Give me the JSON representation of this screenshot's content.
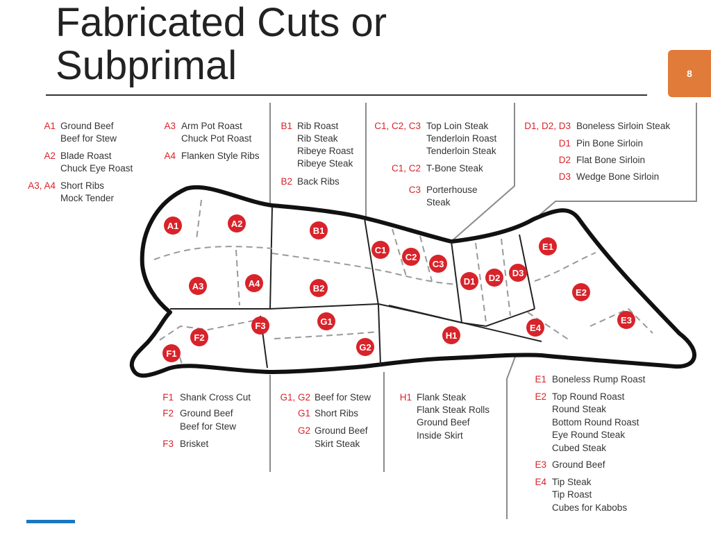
{
  "title": "Fabricated Cuts or Subprimal",
  "title_line1": "Fabricated Cuts or",
  "title_line2": "Subprimal",
  "page_number": "8",
  "colors": {
    "code_red": "#d8232a",
    "badge_orange": "#e07b39",
    "footer_blue": "#1a78c2"
  },
  "cut_markers": [
    "A1",
    "A2",
    "A3",
    "A4",
    "B1",
    "B2",
    "C1",
    "C2",
    "C3",
    "D1",
    "D2",
    "D3",
    "E1",
    "E2",
    "E3",
    "E4",
    "F1",
    "F2",
    "F3",
    "G1",
    "G2",
    "H1"
  ],
  "groups": {
    "a": [
      {
        "code": "A1",
        "lines": [
          "Ground Beef",
          "Beef for Stew"
        ]
      },
      {
        "code": "A2",
        "lines": [
          "Blade Roast",
          "Chuck Eye Roast"
        ]
      },
      {
        "code": "A3, A4",
        "lines": [
          "Short Ribs",
          "Mock Tender"
        ]
      },
      {
        "code": "A3",
        "lines": [
          "Arm Pot Roast",
          "Chuck Pot Roast"
        ]
      },
      {
        "code": "A4",
        "lines": [
          "Flanken Style Ribs"
        ]
      }
    ],
    "b": [
      {
        "code": "B1",
        "lines": [
          "Rib Roast",
          "Rib Steak",
          "Ribeye Roast",
          "Ribeye Steak"
        ]
      },
      {
        "code": "B2",
        "lines": [
          "Back Ribs"
        ]
      }
    ],
    "c": [
      {
        "code": "C1, C2, C3",
        "lines": [
          "Top Loin Steak",
          "Tenderloin Roast",
          "Tenderloin Steak"
        ]
      },
      {
        "code": "C1, C2",
        "lines": [
          "T-Bone Steak"
        ]
      },
      {
        "code": "C3",
        "lines": [
          "Porterhouse",
          "Steak"
        ]
      }
    ],
    "d": [
      {
        "code": "D1, D2, D3",
        "lines": [
          "Boneless Sirloin Steak"
        ]
      },
      {
        "code": "D1",
        "lines": [
          "Pin Bone Sirloin"
        ]
      },
      {
        "code": "D2",
        "lines": [
          "Flat Bone Sirloin"
        ]
      },
      {
        "code": "D3",
        "lines": [
          "Wedge Bone Sirloin"
        ]
      }
    ],
    "f": [
      {
        "code": "F1",
        "lines": [
          "Shank Cross Cut"
        ]
      },
      {
        "code": "F2",
        "lines": [
          "Ground Beef",
          "Beef for Stew"
        ]
      },
      {
        "code": "F3",
        "lines": [
          "Brisket"
        ]
      }
    ],
    "g": [
      {
        "code": "G1, G2",
        "lines": [
          "Beef for Stew"
        ]
      },
      {
        "code": "G1",
        "lines": [
          "Short Ribs"
        ]
      },
      {
        "code": "G2",
        "lines": [
          "Ground Beef",
          "Skirt Steak"
        ]
      }
    ],
    "h": [
      {
        "code": "H1",
        "lines": [
          "Flank Steak",
          "Flank Steak Rolls",
          "Ground Beef",
          "Inside Skirt"
        ]
      }
    ],
    "e": [
      {
        "code": "E1",
        "lines": [
          "Boneless Rump Roast"
        ]
      },
      {
        "code": "E2",
        "lines": [
          "Top Round Roast",
          "Round Steak",
          "Bottom Round Roast",
          "Eye Round Steak",
          "Cubed Steak"
        ]
      },
      {
        "code": "E3",
        "lines": [
          "Ground Beef"
        ]
      },
      {
        "code": "E4",
        "lines": [
          "Tip Steak",
          "Tip Roast",
          "Cubes for Kabobs"
        ]
      }
    ]
  }
}
